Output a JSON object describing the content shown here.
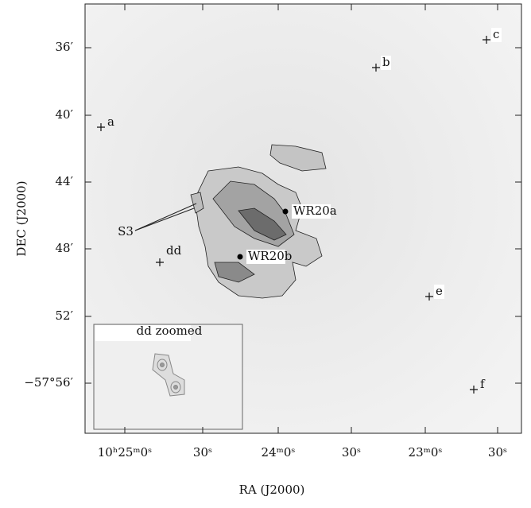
{
  "axes": {
    "x": {
      "label": "RA (J2000)",
      "ticks": [
        "10ʰ25ᵐ0ˢ",
        "30ˢ",
        "24ᵐ0ˢ",
        "30ˢ",
        "23ᵐ0ˢ",
        "30ˢ"
      ]
    },
    "y": {
      "label": "DEC (J2000)",
      "ticks": [
        "36′",
        "40′",
        "44′",
        "48′",
        "52′",
        "−57°56′"
      ]
    }
  },
  "sources": [
    "a",
    "b",
    "c",
    "e",
    "f",
    "dd",
    "WR20a",
    "WR20b",
    "S3"
  ],
  "inset": {
    "title": "dd zoomed"
  }
}
